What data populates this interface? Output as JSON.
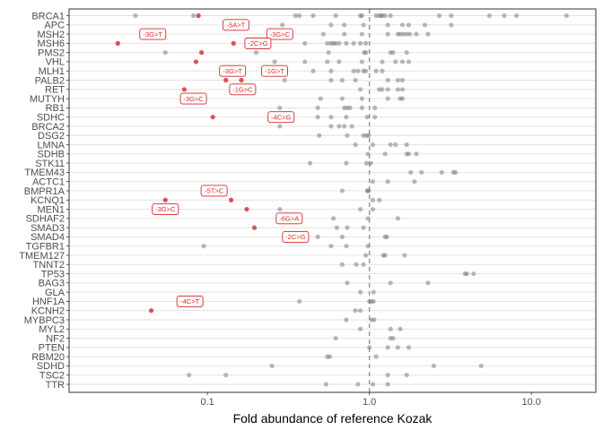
{
  "chart_data": {
    "type": "scatter",
    "xlabel": "Fold abundance of reference Kozak",
    "xscale": "log",
    "xlim": [
      0.014,
      25
    ],
    "xticks": [
      {
        "value": 0.1,
        "label": "0.1"
      },
      {
        "value": 1.0,
        "label": "1.0"
      },
      {
        "value": 10.0,
        "label": "10.0"
      }
    ],
    "reference_line": 1.0,
    "grid": true,
    "colors": {
      "grey_point": "#7f7f7f",
      "red_point": "#d62728",
      "annotation": "#d62728",
      "gridline": "#e0e0e0",
      "reference": "#8c8c8c"
    },
    "genes": [
      {
        "gene": "BRCA1",
        "values": [
          0.036,
          0.082,
          0.35,
          0.37,
          0.45,
          0.62,
          0.88,
          0.9,
          1.1,
          1.15,
          1.18,
          1.2,
          1.25,
          1.35,
          2.7,
          3.2,
          5.5,
          6.8,
          8.1,
          16.5
        ]
      },
      {
        "gene": "APC",
        "values": [
          0.29,
          0.58,
          0.7,
          0.92,
          1.3,
          1.6,
          1.75,
          2.2,
          3.2
        ]
      },
      {
        "gene": "MSH2",
        "values": [
          0.52,
          0.7,
          0.9,
          1.3,
          1.5,
          1.55,
          1.62,
          1.7,
          1.78,
          1.95,
          2.3
        ]
      },
      {
        "gene": "MSH6",
        "values": [
          0.4,
          0.55,
          0.58,
          0.6,
          0.62,
          0.65,
          0.72,
          0.8,
          0.88,
          0.95
        ]
      },
      {
        "gene": "PMS2",
        "values": [
          0.055,
          0.2,
          0.56,
          0.93,
          0.95,
          1.35,
          1.4,
          1.7
        ]
      },
      {
        "gene": "VHL",
        "values": [
          0.26,
          0.4,
          0.55,
          0.65,
          0.9,
          1.2,
          1.45,
          1.6,
          1.75
        ]
      },
      {
        "gene": "MLH1",
        "values": [
          0.45,
          0.58,
          0.8,
          0.85,
          0.92,
          0.95,
          1.1,
          1.2
        ]
      },
      {
        "gene": "PALB2",
        "values": [
          0.3,
          0.58,
          0.68,
          0.82,
          1.3,
          1.5,
          1.6
        ]
      },
      {
        "gene": "RET",
        "values": [
          0.88,
          1.15,
          1.2,
          1.3,
          1.5,
          1.6
        ]
      },
      {
        "gene": "MUTYH",
        "values": [
          0.5,
          0.68,
          0.9,
          1.3,
          1.55,
          1.6
        ]
      },
      {
        "gene": "RB1",
        "values": [
          0.28,
          0.48,
          0.7,
          0.73,
          0.76,
          0.9,
          1.08
        ]
      },
      {
        "gene": "SDHC",
        "values": [
          0.48,
          0.58,
          0.72,
          0.97,
          1.08
        ]
      },
      {
        "gene": "BRCA2",
        "values": [
          0.28,
          0.58,
          0.65,
          0.7,
          0.78
        ]
      },
      {
        "gene": "DSG2",
        "values": [
          0.49,
          0.73,
          0.92,
          0.96,
          0.99
        ]
      },
      {
        "gene": "LMNA",
        "values": [
          0.82,
          1.05,
          1.35,
          1.45,
          1.7
        ]
      },
      {
        "gene": "SDHB",
        "values": [
          0.98,
          1.25,
          1.7,
          1.75,
          1.95
        ]
      },
      {
        "gene": "STK11",
        "values": [
          0.43,
          0.72,
          0.96,
          1.02
        ]
      },
      {
        "gene": "TMEM43",
        "values": [
          1.8,
          2.1,
          2.8,
          3.3,
          3.4
        ]
      },
      {
        "gene": "ACTC1",
        "values": [
          1.05,
          1.3,
          1.9
        ]
      },
      {
        "gene": "BMPR1A",
        "values": [
          0.68,
          0.97,
          0.98,
          0.99
        ]
      },
      {
        "gene": "KCNQ1",
        "values": [
          1.05,
          1.15
        ]
      },
      {
        "gene": "MEN1",
        "values": [
          0.28,
          0.88,
          1.05
        ]
      },
      {
        "gene": "SDHAF2",
        "values": [
          0.29,
          0.6,
          0.98,
          1.5
        ]
      },
      {
        "gene": "SMAD3",
        "values": [
          0.63,
          0.73,
          0.92
        ]
      },
      {
        "gene": "SMAD4",
        "values": [
          0.48,
          0.68,
          1.25,
          1.28
        ]
      },
      {
        "gene": "TGFBR1",
        "values": [
          0.095,
          0.58,
          0.72,
          0.98
        ]
      },
      {
        "gene": "TMEM127",
        "values": [
          0.95,
          1.22,
          1.25,
          1.65
        ]
      },
      {
        "gene": "TNNT2",
        "values": [
          0.68,
          0.83,
          0.92
        ]
      },
      {
        "gene": "TP53",
        "values": [
          3.9,
          4.0,
          4.4
        ]
      },
      {
        "gene": "BAG3",
        "values": [
          0.73,
          1.35,
          2.3
        ]
      },
      {
        "gene": "GLA",
        "values": [
          0.88,
          1.06
        ]
      },
      {
        "gene": "HNF1A",
        "values": [
          0.37,
          1.0,
          1.03,
          1.06
        ]
      },
      {
        "gene": "KCNH2",
        "values": [
          0.82,
          0.88
        ]
      },
      {
        "gene": "MYBPC3",
        "values": [
          0.72,
          1.03,
          1.07
        ]
      },
      {
        "gene": "MYL2",
        "values": [
          0.88,
          1.35,
          1.55
        ]
      },
      {
        "gene": "NF2",
        "values": [
          0.62,
          1.35,
          1.4
        ]
      },
      {
        "gene": "PTEN",
        "values": [
          1.0,
          1.3,
          1.5,
          1.75
        ]
      },
      {
        "gene": "RBM20",
        "values": [
          0.55,
          0.57,
          1.1
        ]
      },
      {
        "gene": "SDHD",
        "values": [
          0.25,
          2.5,
          4.9
        ]
      },
      {
        "gene": "TSC2",
        "values": [
          0.077,
          0.13,
          1.3,
          1.7
        ]
      },
      {
        "gene": "TTR",
        "values": [
          0.54,
          0.85,
          1.05,
          1.3
        ]
      }
    ],
    "highlighted": [
      {
        "gene": "BRCA1",
        "x": 0.088
      },
      {
        "gene": "MSH6",
        "x": 0.028
      },
      {
        "gene": "MSH6",
        "x": 0.145
      },
      {
        "gene": "PMS2",
        "x": 0.092
      },
      {
        "gene": "VHL",
        "x": 0.085
      },
      {
        "gene": "PALB2",
        "x": 0.13
      },
      {
        "gene": "PALB2",
        "x": 0.162
      },
      {
        "gene": "RET",
        "x": 0.072
      },
      {
        "gene": "SDHC",
        "x": 0.108
      },
      {
        "gene": "KCNQ1",
        "x": 0.055
      },
      {
        "gene": "KCNQ1",
        "x": 0.14
      },
      {
        "gene": "MEN1",
        "x": 0.175
      },
      {
        "gene": "SMAD3",
        "x": 0.195
      },
      {
        "gene": "KCNH2",
        "x": 0.045
      }
    ],
    "annotations": [
      {
        "text": "-5A>T",
        "x": 0.15,
        "gene": "APC"
      },
      {
        "text": "-3G>T",
        "x": 0.046,
        "gene": "MSH2"
      },
      {
        "text": "-3G>C",
        "x": 0.28,
        "gene": "MSH2"
      },
      {
        "text": "-2C>G",
        "x": 0.205,
        "gene": "MSH6"
      },
      {
        "text": "-3G>T",
        "x": 0.143,
        "gene": "MLH1"
      },
      {
        "text": "-1G>T",
        "x": 0.26,
        "gene": "MLH1"
      },
      {
        "text": "-1G>C",
        "x": 0.165,
        "gene": "RET"
      },
      {
        "text": "-3G>C",
        "x": 0.082,
        "gene": "MUTYH"
      },
      {
        "text": "-4C>G",
        "x": 0.285,
        "gene": "SDHC"
      },
      {
        "text": "-5T>C",
        "x": 0.11,
        "gene": "BMPR1A"
      },
      {
        "text": "-3G>C",
        "x": 0.055,
        "gene": "MEN1"
      },
      {
        "text": "-6G>A",
        "x": 0.32,
        "gene": "SDHAF2"
      },
      {
        "text": "-2C>G",
        "x": 0.35,
        "gene": "SMAD4"
      },
      {
        "text": "-4C>T",
        "x": 0.078,
        "gene": "HNF1A"
      }
    ]
  }
}
